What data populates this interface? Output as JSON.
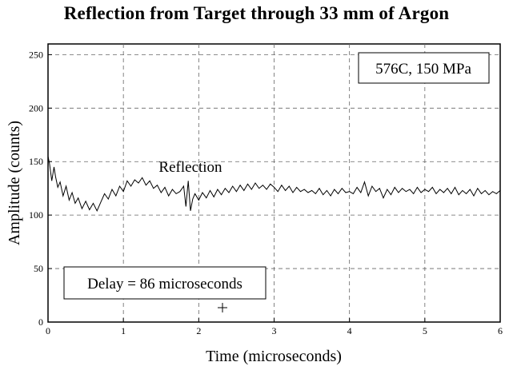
{
  "chart_data": {
    "type": "line",
    "title": "Reflection from Target through 33 mm of Argon",
    "xlabel": "Time (microseconds)",
    "ylabel": "Amplitude (counts)",
    "xlim": [
      0,
      6
    ],
    "ylim": [
      0,
      260
    ],
    "xticks": [
      0,
      1,
      2,
      3,
      4,
      5,
      6
    ],
    "yticks": [
      0,
      50,
      100,
      150,
      200,
      250
    ],
    "grid": true,
    "annotations": {
      "condition": "576C, 150 MPa",
      "reflection": "Reflection",
      "delay": "Delay = 86 microseconds"
    },
    "series": [
      {
        "x": [
          0.0,
          0.02,
          0.05,
          0.08,
          0.1,
          0.13,
          0.16,
          0.2,
          0.24,
          0.28,
          0.32,
          0.36,
          0.4,
          0.45,
          0.5,
          0.55,
          0.6,
          0.65,
          0.7,
          0.75,
          0.8,
          0.85,
          0.9,
          0.95,
          1.0,
          1.05,
          1.1,
          1.15,
          1.2,
          1.25,
          1.3,
          1.35,
          1.4,
          1.45,
          1.5,
          1.55,
          1.6,
          1.65,
          1.7,
          1.75,
          1.8,
          1.83,
          1.86,
          1.89,
          1.92,
          1.95,
          2.0,
          2.05,
          2.1,
          2.15,
          2.2,
          2.25,
          2.3,
          2.35,
          2.4,
          2.45,
          2.5,
          2.55,
          2.6,
          2.65,
          2.7,
          2.75,
          2.8,
          2.85,
          2.9,
          2.95,
          3.0,
          3.05,
          3.1,
          3.15,
          3.2,
          3.25,
          3.3,
          3.35,
          3.4,
          3.45,
          3.5,
          3.55,
          3.6,
          3.65,
          3.7,
          3.75,
          3.8,
          3.85,
          3.9,
          3.95,
          4.0,
          4.05,
          4.1,
          4.15,
          4.2,
          4.25,
          4.3,
          4.35,
          4.4,
          4.45,
          4.5,
          4.55,
          4.6,
          4.65,
          4.7,
          4.75,
          4.8,
          4.85,
          4.9,
          4.95,
          5.0,
          5.05,
          5.1,
          5.15,
          5.2,
          5.25,
          5.3,
          5.35,
          5.4,
          5.45,
          5.5,
          5.55,
          5.6,
          5.65,
          5.7,
          5.75,
          5.8,
          5.85,
          5.9,
          5.95,
          6.0
        ],
        "y": [
          155,
          148,
          132,
          145,
          136,
          126,
          131,
          118,
          127,
          114,
          121,
          111,
          116,
          106,
          113,
          105,
          111,
          104,
          112,
          120,
          115,
          124,
          118,
          127,
          122,
          132,
          127,
          133,
          130,
          135,
          128,
          132,
          125,
          128,
          121,
          126,
          118,
          124,
          120,
          122,
          127,
          108,
          132,
          104,
          115,
          120,
          114,
          121,
          116,
          123,
          117,
          124,
          119,
          125,
          121,
          127,
          122,
          128,
          123,
          129,
          124,
          130,
          125,
          128,
          124,
          129,
          126,
          122,
          128,
          123,
          127,
          121,
          126,
          122,
          124,
          121,
          123,
          120,
          125,
          119,
          123,
          118,
          124,
          120,
          125,
          121,
          122,
          120,
          126,
          121,
          131,
          118,
          127,
          122,
          125,
          116,
          124,
          119,
          126,
          121,
          125,
          122,
          124,
          120,
          126,
          121,
          124,
          122,
          126,
          120,
          124,
          121,
          125,
          120,
          126,
          119,
          123,
          120,
          124,
          118,
          125,
          120,
          123,
          119,
          122,
          120,
          123
        ]
      }
    ]
  }
}
